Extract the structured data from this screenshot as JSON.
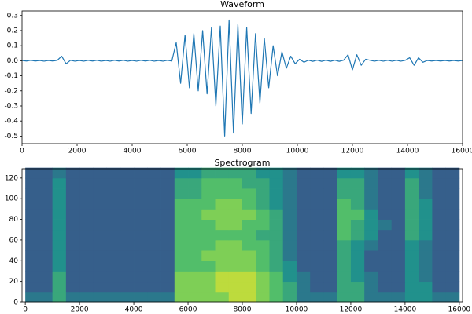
{
  "chart_data": [
    {
      "type": "line",
      "title": "Waveform",
      "color": "#1f77b4",
      "x": [
        0,
        160,
        320,
        480,
        640,
        800,
        960,
        1120,
        1280,
        1440,
        1600,
        1760,
        1920,
        2080,
        2240,
        2400,
        2560,
        2720,
        2880,
        3040,
        3200,
        3360,
        3520,
        3680,
        3840,
        4000,
        4160,
        4320,
        4480,
        4640,
        4800,
        4960,
        5120,
        5280,
        5440,
        5600,
        5760,
        5920,
        6080,
        6240,
        6400,
        6560,
        6720,
        6880,
        7040,
        7200,
        7360,
        7520,
        7680,
        7840,
        8000,
        8160,
        8320,
        8480,
        8640,
        8800,
        8960,
        9120,
        9280,
        9440,
        9600,
        9760,
        9920,
        10080,
        10240,
        10400,
        10560,
        10720,
        10880,
        11040,
        11200,
        11360,
        11520,
        11680,
        11840,
        12000,
        12160,
        12320,
        12480,
        12640,
        12800,
        12960,
        13120,
        13280,
        13440,
        13600,
        13760,
        13920,
        14080,
        14240,
        14400,
        14560,
        14720,
        14880,
        15040,
        15200,
        15360,
        15520,
        15680,
        15840,
        16000
      ],
      "values": [
        0.002,
        -0.002,
        0.003,
        -0.002,
        0.002,
        -0.003,
        0.002,
        -0.002,
        0.003,
        0.03,
        -0.02,
        0.003,
        -0.003,
        0.002,
        -0.003,
        0.003,
        -0.002,
        0.003,
        -0.003,
        0.002,
        -0.003,
        0.003,
        -0.002,
        0.003,
        -0.003,
        0.002,
        -0.003,
        0.003,
        -0.002,
        0.003,
        -0.003,
        0.002,
        -0.003,
        0.003,
        -0.002,
        0.12,
        -0.15,
        0.17,
        -0.18,
        0.18,
        -0.2,
        0.2,
        -0.22,
        0.22,
        -0.3,
        0.23,
        -0.5,
        0.27,
        -0.48,
        0.24,
        -0.42,
        0.22,
        -0.35,
        0.18,
        -0.28,
        0.15,
        -0.18,
        0.1,
        -0.1,
        0.06,
        -0.05,
        0.03,
        -0.02,
        0.01,
        -0.01,
        0.004,
        -0.004,
        0.004,
        -0.004,
        0.004,
        -0.004,
        0.004,
        -0.004,
        0.004,
        0.04,
        -0.06,
        0.04,
        -0.03,
        0.01,
        0.003,
        -0.003,
        0.003,
        -0.003,
        0.003,
        -0.003,
        0.003,
        -0.003,
        0.003,
        0.02,
        -0.03,
        0.02,
        -0.01,
        0.002,
        -0.002,
        0.002,
        -0.002,
        0.002,
        -0.002,
        0.002,
        -0.002,
        0.002
      ],
      "xlim": [
        0,
        16000
      ],
      "xticks": [
        0,
        2000,
        4000,
        6000,
        8000,
        10000,
        12000,
        14000,
        16000
      ],
      "ylim": [
        -0.55,
        0.33
      ],
      "yticks": [
        0.3,
        0.2,
        0.1,
        {
          "value": 0,
          "label": "0.0"
        },
        -0.1,
        -0.2,
        -0.3,
        -0.4,
        -0.5
      ]
    },
    {
      "type": "heatmap",
      "title": "Spectrogram",
      "colormap": "viridis",
      "zlim": [
        0,
        10
      ],
      "x": [
        250,
        750,
        1250,
        1750,
        2250,
        2750,
        3250,
        3750,
        4250,
        4750,
        5250,
        5750,
        6250,
        6750,
        7250,
        7750,
        8250,
        8750,
        9250,
        9750,
        10250,
        10750,
        11250,
        11750,
        12250,
        12750,
        13250,
        13750,
        14250,
        14750,
        15250,
        15750
      ],
      "y": [
        5,
        15,
        25,
        35,
        45,
        55,
        65,
        75,
        85,
        95,
        105,
        115,
        125
      ],
      "z": [
        [
          4,
          4,
          6,
          4,
          4,
          4,
          4,
          4,
          4,
          4,
          4,
          8,
          8,
          8,
          8,
          9,
          9,
          8,
          7,
          6,
          4,
          4,
          4,
          6,
          6,
          4,
          4,
          4,
          5,
          5,
          4,
          4
        ],
        [
          3,
          3,
          6,
          3,
          3,
          3,
          3,
          3,
          3,
          3,
          3,
          8,
          8,
          8,
          9,
          9,
          9,
          8,
          7,
          6,
          4,
          3,
          3,
          6,
          6,
          4,
          3,
          3,
          5,
          5,
          3,
          3
        ],
        [
          3,
          3,
          6,
          3,
          3,
          3,
          3,
          3,
          3,
          3,
          3,
          8,
          8,
          8,
          9,
          9,
          9,
          8,
          7,
          5,
          4,
          3,
          3,
          6,
          5,
          4,
          3,
          3,
          5,
          4,
          3,
          3
        ],
        [
          3,
          3,
          5,
          3,
          3,
          3,
          3,
          3,
          3,
          3,
          3,
          7,
          7,
          7,
          8,
          8,
          8,
          7,
          6,
          5,
          3,
          3,
          3,
          6,
          5,
          3,
          3,
          3,
          5,
          4,
          3,
          3
        ],
        [
          3,
          3,
          5,
          3,
          3,
          3,
          3,
          3,
          3,
          3,
          3,
          7,
          7,
          8,
          8,
          8,
          8,
          7,
          6,
          4,
          3,
          3,
          3,
          6,
          5,
          3,
          3,
          3,
          5,
          4,
          3,
          3
        ],
        [
          3,
          3,
          5,
          3,
          3,
          3,
          3,
          3,
          3,
          3,
          3,
          7,
          7,
          7,
          8,
          8,
          7,
          7,
          6,
          4,
          3,
          3,
          3,
          6,
          5,
          4,
          3,
          3,
          5,
          4,
          3,
          3
        ],
        [
          3,
          3,
          5,
          3,
          3,
          3,
          3,
          3,
          3,
          3,
          3,
          7,
          7,
          7,
          7,
          7,
          7,
          6,
          6,
          4,
          3,
          3,
          3,
          7,
          6,
          5,
          3,
          3,
          6,
          5,
          3,
          3
        ],
        [
          3,
          3,
          5,
          3,
          3,
          3,
          3,
          3,
          3,
          3,
          3,
          7,
          7,
          7,
          8,
          8,
          7,
          7,
          6,
          4,
          3,
          3,
          3,
          7,
          6,
          5,
          4,
          3,
          6,
          5,
          3,
          3
        ],
        [
          3,
          3,
          5,
          3,
          3,
          3,
          3,
          3,
          3,
          3,
          3,
          7,
          7,
          8,
          8,
          8,
          8,
          7,
          6,
          4,
          3,
          3,
          3,
          7,
          7,
          5,
          3,
          3,
          6,
          5,
          3,
          3
        ],
        [
          3,
          3,
          5,
          3,
          3,
          3,
          3,
          3,
          3,
          3,
          3,
          7,
          7,
          7,
          8,
          8,
          7,
          6,
          5,
          4,
          3,
          3,
          3,
          7,
          6,
          4,
          3,
          3,
          6,
          5,
          3,
          3
        ],
        [
          3,
          3,
          5,
          3,
          3,
          3,
          3,
          3,
          3,
          3,
          3,
          6,
          6,
          7,
          7,
          7,
          7,
          6,
          5,
          4,
          3,
          3,
          3,
          6,
          6,
          4,
          3,
          3,
          6,
          4,
          3,
          3
        ],
        [
          3,
          3,
          5,
          3,
          3,
          3,
          3,
          3,
          3,
          3,
          3,
          6,
          6,
          7,
          7,
          7,
          6,
          6,
          5,
          4,
          3,
          3,
          3,
          6,
          6,
          4,
          3,
          3,
          6,
          4,
          3,
          3
        ],
        [
          3,
          3,
          4,
          3,
          3,
          3,
          3,
          3,
          3,
          3,
          3,
          5,
          5,
          6,
          6,
          6,
          6,
          5,
          5,
          4,
          3,
          3,
          3,
          5,
          5,
          4,
          3,
          3,
          5,
          4,
          3,
          3
        ]
      ],
      "xlim": [
        -120,
        16120
      ],
      "xticks": [
        0,
        2000,
        4000,
        6000,
        8000,
        10000,
        12000,
        14000,
        16000
      ],
      "ylim": [
        0,
        129
      ],
      "yticks": [
        0,
        20,
        40,
        60,
        80,
        100,
        120
      ]
    }
  ]
}
